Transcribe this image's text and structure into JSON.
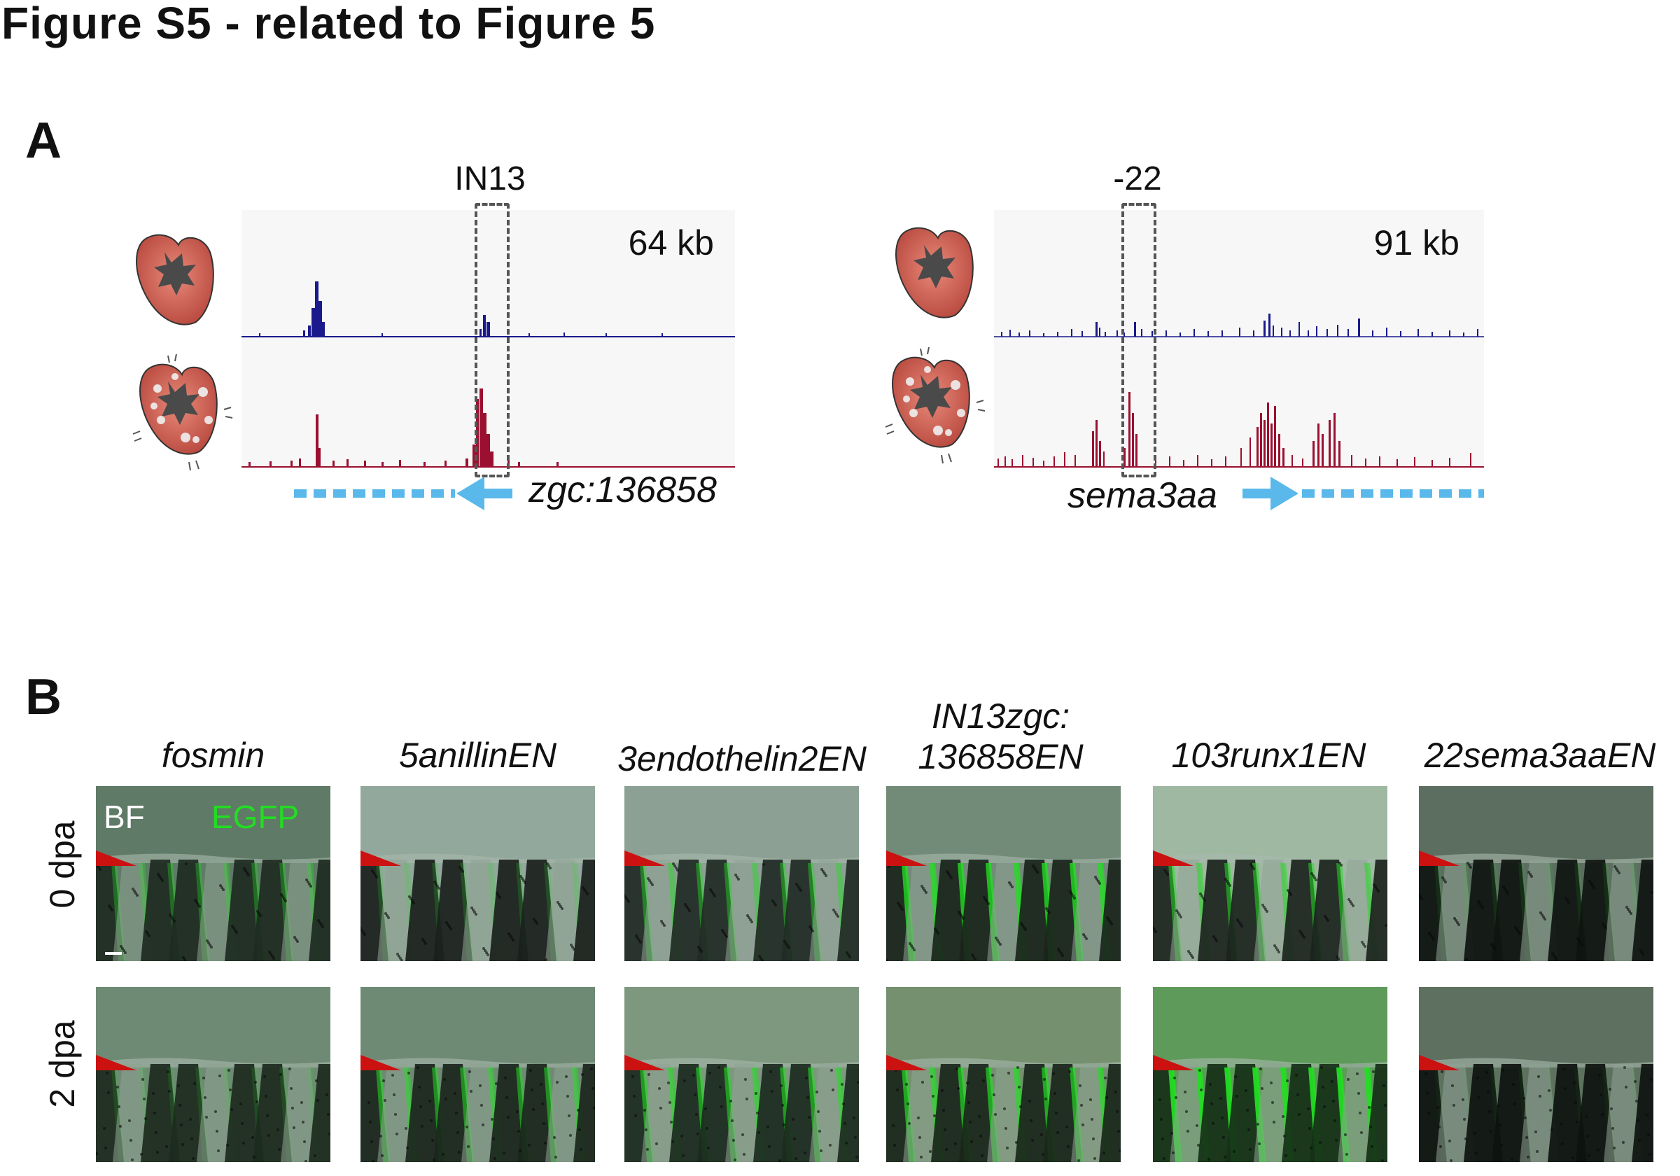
{
  "figure_title": "Figure S5 - related to Figure 5",
  "panel_a": {
    "letter": "A",
    "tracks": [
      {
        "region_label": "IN13",
        "span_label": "64 kb",
        "gene_label": "zgc:136858",
        "gene_direction": "left",
        "colors": {
          "uninjured": "#1a1a8c",
          "regenerating": "#9b1030",
          "gene_arrow": "#5ab8ea",
          "box": "#555555"
        }
      },
      {
        "region_label": "-22",
        "span_label": "91 kb",
        "gene_label": "sema3aa",
        "gene_direction": "right",
        "colors": {
          "uninjured": "#1a1a8c",
          "regenerating": "#9b1030",
          "gene_arrow": "#5ab8ea",
          "box": "#555555"
        }
      }
    ],
    "icons": [
      "uninjured-heart-icon",
      "regenerating-heart-icon"
    ]
  },
  "panel_b": {
    "letter": "B",
    "columns": [
      {
        "label_1": "fosmin",
        "label_2": ""
      },
      {
        "label_1": "5anillinEN",
        "label_2": ""
      },
      {
        "label_1": "3endothelin2EN",
        "label_2": ""
      },
      {
        "label_1": "IN13zgc:",
        "label_2": "136858EN"
      },
      {
        "label_1": "103runx1EN",
        "label_2": ""
      },
      {
        "label_1": "22sema3aaEN",
        "label_2": ""
      }
    ],
    "rows": [
      {
        "label": "0 dpa"
      },
      {
        "label": "2 dpa"
      }
    ],
    "channel_labels": {
      "bf": "BF",
      "egfp": "EGFP"
    },
    "colors": {
      "egfp": "#22dd22",
      "amputation_marker": "#cc1111"
    }
  }
}
